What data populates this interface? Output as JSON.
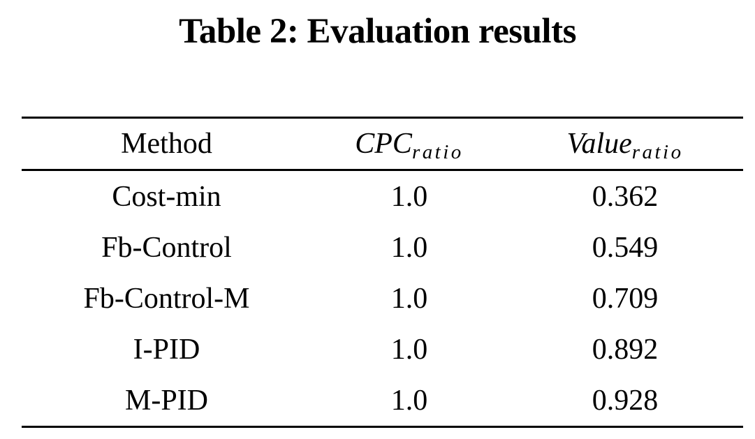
{
  "caption": "Table 2: Evaluation results",
  "table": {
    "columns": [
      {
        "label": "Method"
      },
      {
        "base": "CPC",
        "sub": "ratio"
      },
      {
        "base": "Value",
        "sub": "ratio"
      }
    ],
    "rows": [
      {
        "method": "Cost-min",
        "cpc_ratio": "1.0",
        "value_ratio": "0.362"
      },
      {
        "method": "Fb-Control",
        "cpc_ratio": "1.0",
        "value_ratio": "0.549"
      },
      {
        "method": "Fb-Control-M",
        "cpc_ratio": "1.0",
        "value_ratio": "0.709"
      },
      {
        "method": "I-PID",
        "cpc_ratio": "1.0",
        "value_ratio": "0.892"
      },
      {
        "method": "M-PID",
        "cpc_ratio": "1.0",
        "value_ratio": "0.928"
      }
    ]
  },
  "colors": {
    "text": "#000000",
    "background": "#ffffff",
    "rule": "#000000"
  }
}
